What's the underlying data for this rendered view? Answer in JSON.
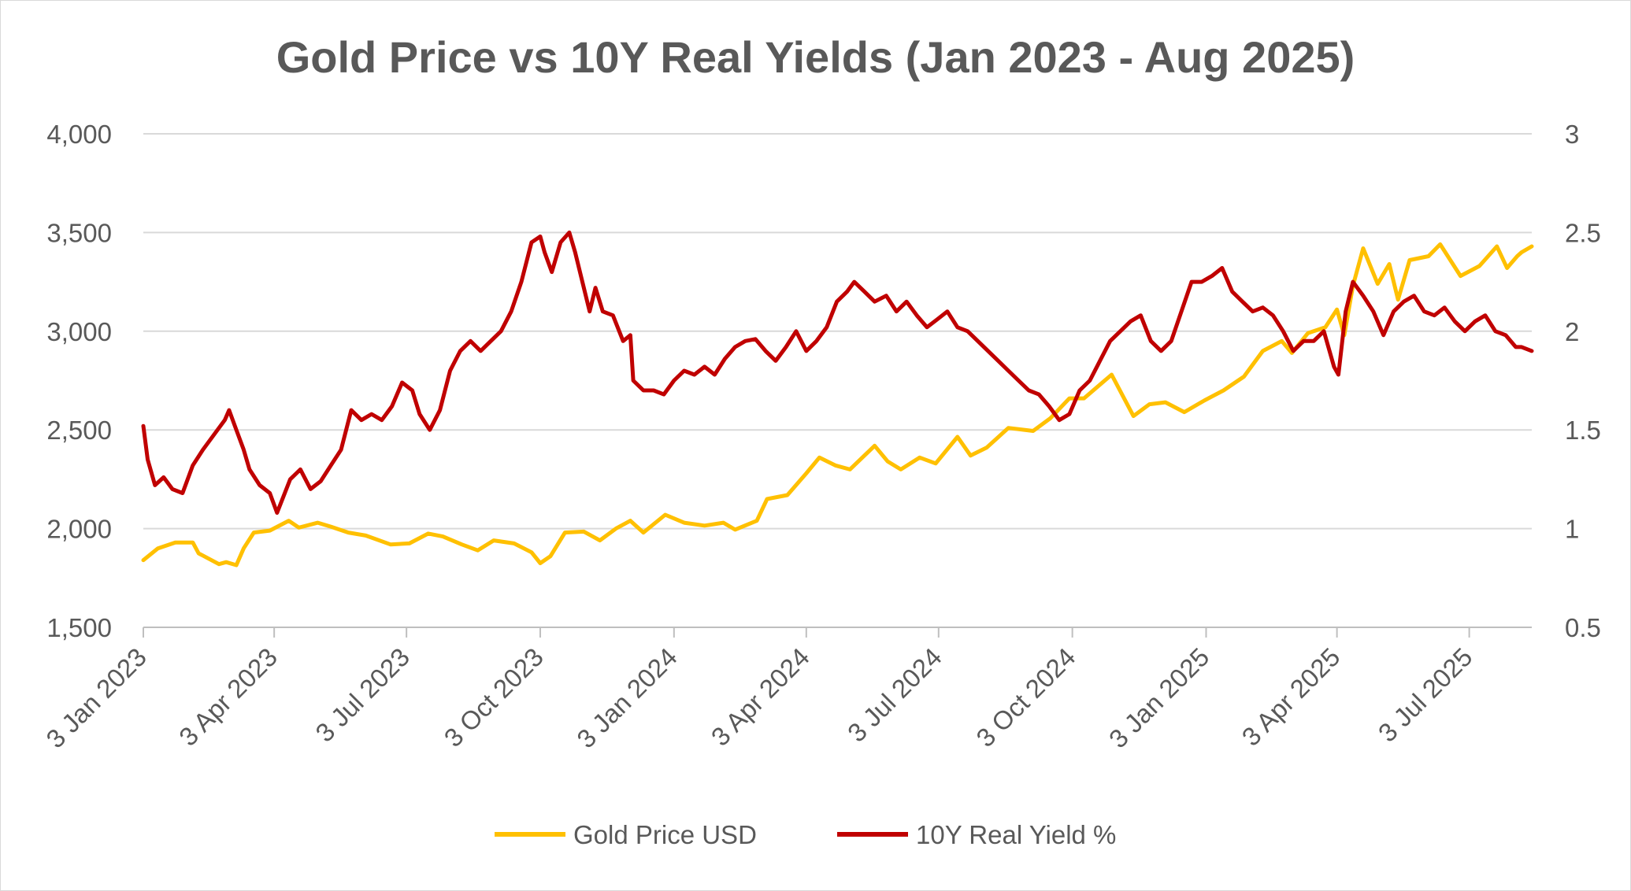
{
  "chart_data": {
    "type": "line",
    "title": "Gold Price vs 10Y Real Yields (Jan 2023 - Aug 2025)",
    "xlabel": "",
    "ylabel": "",
    "y2label": "",
    "x_ticks": [
      "3 Jan 2023",
      "3 Apr 2023",
      "3 Jul 2023",
      "3 Oct 2023",
      "3 Jan 2024",
      "3 Apr 2024",
      "3 Jul 2024",
      "3 Oct 2024",
      "3 Jan 2025",
      "3 Apr 2025",
      "3 Jul 2025"
    ],
    "x_range": [
      "2023-01-03",
      "2025-08-15"
    ],
    "y_left": {
      "min": 1500,
      "max": 4000,
      "ticks": [
        "1,500",
        "2,000",
        "2,500",
        "3,000",
        "3,500",
        "4,000"
      ]
    },
    "y_right": {
      "min": 0.5,
      "max": 3,
      "ticks": [
        "0.5",
        "1",
        "1.5",
        "2",
        "2.5",
        "3"
      ]
    },
    "grid": "horizontal",
    "legend_position": "bottom",
    "series": [
      {
        "name": "Gold Price USD",
        "axis": "left",
        "color": "#FFC000",
        "points": [
          [
            "2023-01-03",
            1840
          ],
          [
            "2023-01-13",
            1900
          ],
          [
            "2023-01-25",
            1930
          ],
          [
            "2023-02-06",
            1930
          ],
          [
            "2023-02-10",
            1875
          ],
          [
            "2023-02-24",
            1820
          ],
          [
            "2023-03-01",
            1830
          ],
          [
            "2023-03-08",
            1815
          ],
          [
            "2023-03-13",
            1900
          ],
          [
            "2023-03-20",
            1980
          ],
          [
            "2023-03-31",
            1990
          ],
          [
            "2023-04-13",
            2040
          ],
          [
            "2023-04-20",
            2005
          ],
          [
            "2023-05-03",
            2030
          ],
          [
            "2023-05-12",
            2010
          ],
          [
            "2023-05-24",
            1980
          ],
          [
            "2023-06-05",
            1965
          ],
          [
            "2023-06-22",
            1920
          ],
          [
            "2023-07-05",
            1925
          ],
          [
            "2023-07-18",
            1975
          ],
          [
            "2023-07-28",
            1960
          ],
          [
            "2023-08-10",
            1920
          ],
          [
            "2023-08-21",
            1890
          ],
          [
            "2023-09-01",
            1940
          ],
          [
            "2023-09-15",
            1925
          ],
          [
            "2023-09-27",
            1880
          ],
          [
            "2023-10-03",
            1825
          ],
          [
            "2023-10-10",
            1860
          ],
          [
            "2023-10-20",
            1980
          ],
          [
            "2023-11-02",
            1985
          ],
          [
            "2023-11-13",
            1940
          ],
          [
            "2023-11-24",
            2000
          ],
          [
            "2023-12-04",
            2040
          ],
          [
            "2023-12-13",
            1980
          ],
          [
            "2023-12-28",
            2070
          ],
          [
            "2024-01-10",
            2030
          ],
          [
            "2024-01-24",
            2015
          ],
          [
            "2024-02-06",
            2030
          ],
          [
            "2024-02-14",
            1995
          ],
          [
            "2024-02-29",
            2040
          ],
          [
            "2024-03-07",
            2150
          ],
          [
            "2024-03-21",
            2170
          ],
          [
            "2024-04-03",
            2280
          ],
          [
            "2024-04-12",
            2360
          ],
          [
            "2024-04-23",
            2320
          ],
          [
            "2024-05-03",
            2300
          ],
          [
            "2024-05-20",
            2420
          ],
          [
            "2024-05-29",
            2340
          ],
          [
            "2024-06-07",
            2300
          ],
          [
            "2024-06-20",
            2360
          ],
          [
            "2024-07-01",
            2330
          ],
          [
            "2024-07-16",
            2465
          ],
          [
            "2024-07-25",
            2370
          ],
          [
            "2024-08-05",
            2410
          ],
          [
            "2024-08-20",
            2510
          ],
          [
            "2024-09-06",
            2495
          ],
          [
            "2024-09-18",
            2560
          ],
          [
            "2024-10-01",
            2660
          ],
          [
            "2024-10-11",
            2660
          ],
          [
            "2024-10-30",
            2780
          ],
          [
            "2024-11-14",
            2570
          ],
          [
            "2024-11-25",
            2630
          ],
          [
            "2024-12-06",
            2640
          ],
          [
            "2024-12-19",
            2590
          ],
          [
            "2025-01-02",
            2650
          ],
          [
            "2025-01-15",
            2700
          ],
          [
            "2025-01-29",
            2770
          ],
          [
            "2025-02-11",
            2900
          ],
          [
            "2025-02-24",
            2950
          ],
          [
            "2025-03-03",
            2890
          ],
          [
            "2025-03-14",
            2990
          ],
          [
            "2025-03-26",
            3020
          ],
          [
            "2025-04-03",
            3110
          ],
          [
            "2025-04-08",
            2980
          ],
          [
            "2025-04-14",
            3230
          ],
          [
            "2025-04-21",
            3420
          ],
          [
            "2025-05-01",
            3240
          ],
          [
            "2025-05-09",
            3340
          ],
          [
            "2025-05-15",
            3160
          ],
          [
            "2025-05-23",
            3360
          ],
          [
            "2025-06-05",
            3380
          ],
          [
            "2025-06-13",
            3440
          ],
          [
            "2025-06-27",
            3280
          ],
          [
            "2025-07-10",
            3330
          ],
          [
            "2025-07-22",
            3430
          ],
          [
            "2025-07-29",
            3320
          ],
          [
            "2025-08-05",
            3380
          ],
          [
            "2025-08-08",
            3400
          ],
          [
            "2025-08-15",
            3430
          ]
        ]
      },
      {
        "name": "10Y Real Yield %",
        "axis": "right",
        "color": "#C00000",
        "points": [
          [
            "2023-01-03",
            1.52
          ],
          [
            "2023-01-06",
            1.35
          ],
          [
            "2023-01-11",
            1.22
          ],
          [
            "2023-01-17",
            1.26
          ],
          [
            "2023-01-23",
            1.2
          ],
          [
            "2023-01-30",
            1.18
          ],
          [
            "2023-02-06",
            1.32
          ],
          [
            "2023-02-13",
            1.4
          ],
          [
            "2023-02-21",
            1.48
          ],
          [
            "2023-02-28",
            1.55
          ],
          [
            "2023-03-03",
            1.6
          ],
          [
            "2023-03-08",
            1.5
          ],
          [
            "2023-03-13",
            1.4
          ],
          [
            "2023-03-17",
            1.3
          ],
          [
            "2023-03-24",
            1.22
          ],
          [
            "2023-03-31",
            1.18
          ],
          [
            "2023-04-05",
            1.08
          ],
          [
            "2023-04-14",
            1.25
          ],
          [
            "2023-04-21",
            1.3
          ],
          [
            "2023-04-28",
            1.2
          ],
          [
            "2023-05-05",
            1.24
          ],
          [
            "2023-05-12",
            1.32
          ],
          [
            "2023-05-19",
            1.4
          ],
          [
            "2023-05-26",
            1.6
          ],
          [
            "2023-06-02",
            1.55
          ],
          [
            "2023-06-09",
            1.58
          ],
          [
            "2023-06-16",
            1.55
          ],
          [
            "2023-06-23",
            1.62
          ],
          [
            "2023-06-30",
            1.74
          ],
          [
            "2023-07-07",
            1.7
          ],
          [
            "2023-07-12",
            1.58
          ],
          [
            "2023-07-19",
            1.5
          ],
          [
            "2023-07-26",
            1.6
          ],
          [
            "2023-08-02",
            1.8
          ],
          [
            "2023-08-09",
            1.9
          ],
          [
            "2023-08-16",
            1.95
          ],
          [
            "2023-08-23",
            1.9
          ],
          [
            "2023-08-30",
            1.95
          ],
          [
            "2023-09-06",
            2.0
          ],
          [
            "2023-09-13",
            2.1
          ],
          [
            "2023-09-20",
            2.25
          ],
          [
            "2023-09-27",
            2.45
          ],
          [
            "2023-10-03",
            2.48
          ],
          [
            "2023-10-06",
            2.4
          ],
          [
            "2023-10-11",
            2.3
          ],
          [
            "2023-10-17",
            2.45
          ],
          [
            "2023-10-23",
            2.5
          ],
          [
            "2023-10-27",
            2.4
          ],
          [
            "2023-11-01",
            2.25
          ],
          [
            "2023-11-06",
            2.1
          ],
          [
            "2023-11-10",
            2.22
          ],
          [
            "2023-11-15",
            2.1
          ],
          [
            "2023-11-22",
            2.08
          ],
          [
            "2023-11-29",
            1.95
          ],
          [
            "2023-12-04",
            1.98
          ],
          [
            "2023-12-06",
            1.75
          ],
          [
            "2023-12-13",
            1.7
          ],
          [
            "2023-12-20",
            1.7
          ],
          [
            "2023-12-27",
            1.68
          ],
          [
            "2024-01-03",
            1.75
          ],
          [
            "2024-01-10",
            1.8
          ],
          [
            "2024-01-17",
            1.78
          ],
          [
            "2024-01-24",
            1.82
          ],
          [
            "2024-01-31",
            1.78
          ],
          [
            "2024-02-07",
            1.86
          ],
          [
            "2024-02-14",
            1.92
          ],
          [
            "2024-02-21",
            1.95
          ],
          [
            "2024-02-28",
            1.96
          ],
          [
            "2024-03-06",
            1.9
          ],
          [
            "2024-03-13",
            1.85
          ],
          [
            "2024-03-20",
            1.92
          ],
          [
            "2024-03-27",
            2.0
          ],
          [
            "2024-04-03",
            1.9
          ],
          [
            "2024-04-10",
            1.95
          ],
          [
            "2024-04-17",
            2.02
          ],
          [
            "2024-04-24",
            2.15
          ],
          [
            "2024-05-01",
            2.2
          ],
          [
            "2024-05-06",
            2.25
          ],
          [
            "2024-05-13",
            2.2
          ],
          [
            "2024-05-20",
            2.15
          ],
          [
            "2024-05-28",
            2.18
          ],
          [
            "2024-06-04",
            2.1
          ],
          [
            "2024-06-11",
            2.15
          ],
          [
            "2024-06-18",
            2.08
          ],
          [
            "2024-06-25",
            2.02
          ],
          [
            "2024-07-02",
            2.06
          ],
          [
            "2024-07-09",
            2.1
          ],
          [
            "2024-07-16",
            2.02
          ],
          [
            "2024-07-23",
            2.0
          ],
          [
            "2024-07-30",
            1.95
          ],
          [
            "2024-08-06",
            1.9
          ],
          [
            "2024-08-13",
            1.85
          ],
          [
            "2024-08-20",
            1.8
          ],
          [
            "2024-08-27",
            1.75
          ],
          [
            "2024-09-03",
            1.7
          ],
          [
            "2024-09-10",
            1.68
          ],
          [
            "2024-09-17",
            1.62
          ],
          [
            "2024-09-24",
            1.55
          ],
          [
            "2024-10-01",
            1.58
          ],
          [
            "2024-10-08",
            1.7
          ],
          [
            "2024-10-15",
            1.75
          ],
          [
            "2024-10-22",
            1.85
          ],
          [
            "2024-10-29",
            1.95
          ],
          [
            "2024-11-05",
            2.0
          ],
          [
            "2024-11-12",
            2.05
          ],
          [
            "2024-11-19",
            2.08
          ],
          [
            "2024-11-26",
            1.95
          ],
          [
            "2024-12-03",
            1.9
          ],
          [
            "2024-12-10",
            1.95
          ],
          [
            "2024-12-17",
            2.1
          ],
          [
            "2024-12-24",
            2.25
          ],
          [
            "2024-12-31",
            2.25
          ],
          [
            "2025-01-07",
            2.28
          ],
          [
            "2025-01-14",
            2.32
          ],
          [
            "2025-01-21",
            2.2
          ],
          [
            "2025-01-28",
            2.15
          ],
          [
            "2025-02-04",
            2.1
          ],
          [
            "2025-02-11",
            2.12
          ],
          [
            "2025-02-18",
            2.08
          ],
          [
            "2025-02-25",
            2.0
          ],
          [
            "2025-03-04",
            1.9
          ],
          [
            "2025-03-11",
            1.95
          ],
          [
            "2025-03-18",
            1.95
          ],
          [
            "2025-03-25",
            2.0
          ],
          [
            "2025-04-01",
            1.82
          ],
          [
            "2025-04-04",
            1.78
          ],
          [
            "2025-04-09",
            2.1
          ],
          [
            "2025-04-14",
            2.25
          ],
          [
            "2025-04-21",
            2.18
          ],
          [
            "2025-04-28",
            2.1
          ],
          [
            "2025-05-05",
            1.98
          ],
          [
            "2025-05-12",
            2.1
          ],
          [
            "2025-05-19",
            2.15
          ],
          [
            "2025-05-26",
            2.18
          ],
          [
            "2025-06-02",
            2.1
          ],
          [
            "2025-06-09",
            2.08
          ],
          [
            "2025-06-16",
            2.12
          ],
          [
            "2025-06-23",
            2.05
          ],
          [
            "2025-06-30",
            2.0
          ],
          [
            "2025-07-07",
            2.05
          ],
          [
            "2025-07-14",
            2.08
          ],
          [
            "2025-07-21",
            2.0
          ],
          [
            "2025-07-28",
            1.98
          ],
          [
            "2025-08-04",
            1.92
          ],
          [
            "2025-08-08",
            1.92
          ],
          [
            "2025-08-15",
            1.9
          ]
        ]
      }
    ]
  }
}
